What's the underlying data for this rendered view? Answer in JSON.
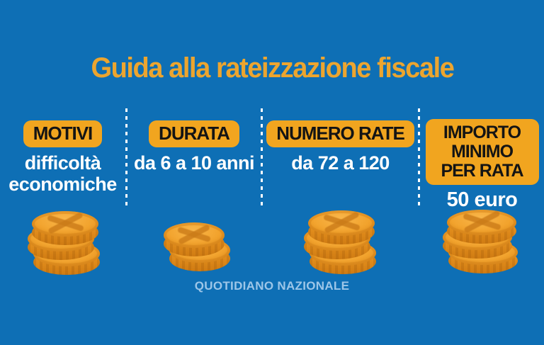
{
  "title": "Guida alla rateizzazione fiscale",
  "columns": [
    {
      "badge": "MOTIVI",
      "text": "difficoltà economiche",
      "coins": 3
    },
    {
      "badge": "DURATA",
      "text": "da 6 a 10 anni",
      "coins": 2
    },
    {
      "badge": "NUMERO RATE",
      "text": "da 72 a 120",
      "coins": 3
    },
    {
      "badge": "IMPORTO MINIMO PER RATA",
      "text": "50 euro",
      "coins": 3
    }
  ],
  "footer": "QUOTIDIANO NAZIONALE",
  "colors": {
    "background": "#0e6fb5",
    "accent": "#f1a51f",
    "title": "#eca52f",
    "text": "#ffffff",
    "badge_text": "#141414",
    "footer": "#9dc6e8"
  }
}
